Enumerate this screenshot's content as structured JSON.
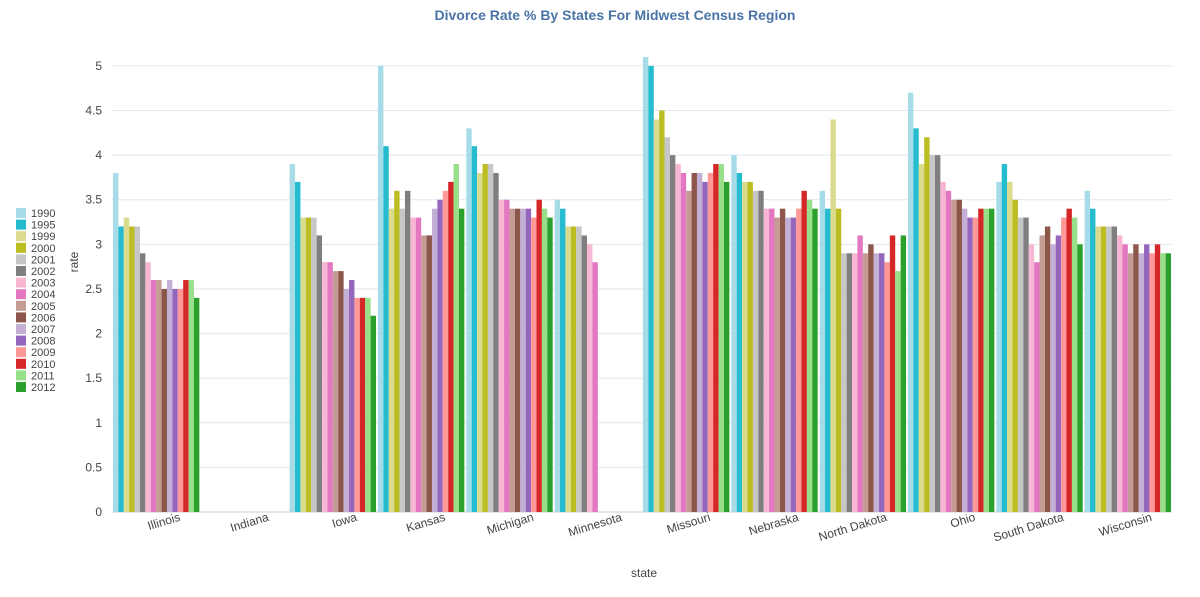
{
  "chart_data": {
    "type": "bar",
    "title": "Divorce Rate % By States For Midwest Census Region",
    "xlabel": "state",
    "ylabel": "rate",
    "ylim": [
      0,
      5
    ],
    "yticks": [
      "0",
      "0.5",
      "1",
      "1.5",
      "2",
      "2.5",
      "3",
      "3.5",
      "4",
      "4.5",
      "5"
    ],
    "legend_position": "left",
    "categories": [
      "Illinois",
      "Indiana",
      "Iowa",
      "Kansas",
      "Michigan",
      "Minnesota",
      "Missouri",
      "Nebraska",
      "North Dakota",
      "Ohio",
      "South Dakota",
      "Wisconsin"
    ],
    "series": [
      {
        "name": "1990",
        "color": "#a6dce8",
        "values": [
          3.8,
          null,
          3.9,
          5.0,
          4.3,
          3.5,
          5.1,
          4.0,
          3.6,
          4.7,
          3.7,
          3.6
        ]
      },
      {
        "name": "1995",
        "color": "#26bccf",
        "values": [
          3.2,
          null,
          3.7,
          4.1,
          4.1,
          3.4,
          5.0,
          3.8,
          3.4,
          4.3,
          3.9,
          3.4
        ]
      },
      {
        "name": "1999",
        "color": "#dbdb8d",
        "values": [
          3.3,
          null,
          3.3,
          3.4,
          3.8,
          3.2,
          4.4,
          3.7,
          4.4,
          3.9,
          3.7,
          3.2
        ]
      },
      {
        "name": "2000",
        "color": "#bcbd22",
        "values": [
          3.2,
          null,
          3.3,
          3.6,
          3.9,
          3.2,
          4.5,
          3.7,
          3.4,
          4.2,
          3.5,
          3.2
        ]
      },
      {
        "name": "2001",
        "color": "#c7c7c7",
        "values": [
          3.2,
          null,
          3.3,
          3.4,
          3.9,
          3.2,
          4.2,
          3.6,
          2.9,
          4.0,
          3.3,
          3.2
        ]
      },
      {
        "name": "2002",
        "color": "#7f7f7f",
        "values": [
          2.9,
          null,
          3.1,
          3.6,
          3.8,
          3.1,
          4.0,
          3.6,
          2.9,
          4.0,
          3.3,
          3.2
        ]
      },
      {
        "name": "2003",
        "color": "#f7b6d2",
        "values": [
          2.8,
          null,
          2.8,
          3.3,
          3.5,
          3.0,
          3.9,
          3.4,
          2.9,
          3.7,
          3.0,
          3.1
        ]
      },
      {
        "name": "2004",
        "color": "#e377c2",
        "values": [
          2.6,
          null,
          2.8,
          3.3,
          3.5,
          2.8,
          3.8,
          3.4,
          3.1,
          3.6,
          2.8,
          3.0
        ]
      },
      {
        "name": "2005",
        "color": "#c49c94",
        "values": [
          2.6,
          null,
          2.7,
          3.1,
          3.4,
          null,
          3.6,
          3.3,
          2.9,
          3.5,
          3.1,
          2.9
        ]
      },
      {
        "name": "2006",
        "color": "#8c564b",
        "values": [
          2.5,
          null,
          2.7,
          3.1,
          3.4,
          null,
          3.8,
          3.4,
          3.0,
          3.5,
          3.2,
          3.0
        ]
      },
      {
        "name": "2007",
        "color": "#c5b0d5",
        "values": [
          2.6,
          null,
          2.5,
          3.4,
          3.4,
          null,
          3.8,
          3.3,
          2.9,
          3.4,
          3.0,
          2.9
        ]
      },
      {
        "name": "2008",
        "color": "#9467bd",
        "values": [
          2.5,
          null,
          2.6,
          3.5,
          3.4,
          null,
          3.7,
          3.3,
          2.9,
          3.3,
          3.1,
          3.0
        ]
      },
      {
        "name": "2009",
        "color": "#ff9896",
        "values": [
          2.5,
          null,
          2.4,
          3.6,
          3.3,
          null,
          3.8,
          3.4,
          2.8,
          3.3,
          3.3,
          2.9
        ]
      },
      {
        "name": "2010",
        "color": "#d62728",
        "values": [
          2.6,
          null,
          2.4,
          3.7,
          3.5,
          null,
          3.9,
          3.6,
          3.1,
          3.4,
          3.4,
          3.0
        ]
      },
      {
        "name": "2011",
        "color": "#98df8a",
        "values": [
          2.6,
          null,
          2.4,
          3.9,
          3.4,
          null,
          3.9,
          3.5,
          2.7,
          3.4,
          3.3,
          2.9
        ]
      },
      {
        "name": "2012",
        "color": "#2ca02c",
        "values": [
          2.4,
          null,
          2.2,
          3.4,
          3.3,
          null,
          3.7,
          3.4,
          3.1,
          3.4,
          3.0,
          2.9
        ]
      }
    ]
  }
}
